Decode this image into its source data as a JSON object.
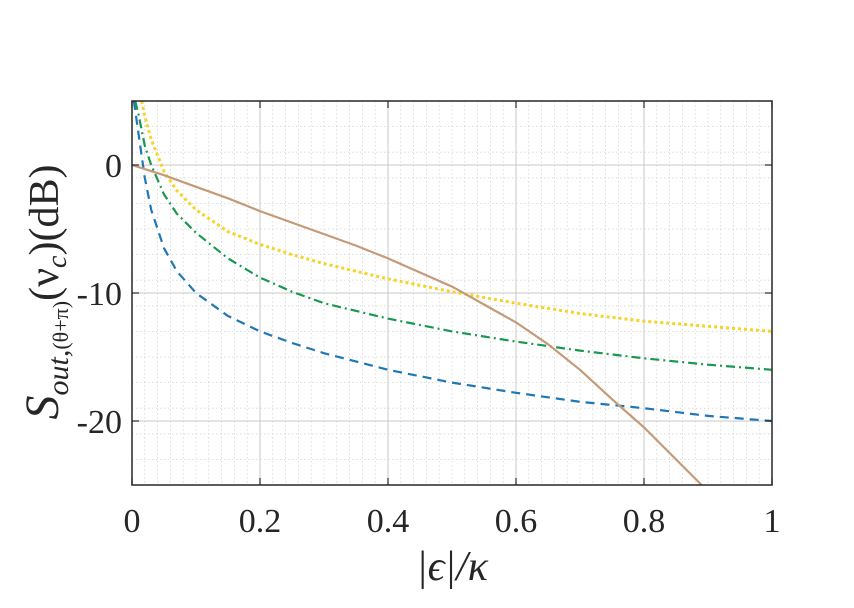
{
  "chart_data": {
    "type": "line",
    "title": "",
    "xlabel": "|ϵ|/κ",
    "ylabel": "S_out,(θ+π)(ν_c)(dB)",
    "ylabel_parts": {
      "main": "S",
      "sub": "out,",
      "sub_paren": "(θ+π)",
      "arg": "(ν",
      "arg_sub": "c",
      "arg_close": ")",
      "unit": "(dB)"
    },
    "xlim": [
      0,
      1
    ],
    "ylim": [
      -25,
      5
    ],
    "xticks": [
      0,
      0.2,
      0.4,
      0.6,
      0.8,
      1
    ],
    "xtick_labels": [
      "0",
      "0.2",
      "0.4",
      "0.6",
      "0.8",
      "1"
    ],
    "yticks": [
      -20,
      -10,
      0
    ],
    "ytick_labels": [
      "-20",
      "-10",
      "0"
    ],
    "grid": true,
    "minor_grid": true,
    "legend": "none",
    "series": [
      {
        "color": "#1f77b4",
        "line_style": "dashed",
        "x": [
          0.003,
          0.01,
          0.02,
          0.03,
          0.05,
          0.07,
          0.1,
          0.15,
          0.2,
          0.25,
          0.3,
          0.4,
          0.5,
          0.6,
          0.7,
          0.8,
          0.9,
          1.0
        ],
        "y": [
          5,
          2.5,
          -1,
          -3.5,
          -6.5,
          -8.3,
          -10,
          -11.8,
          -13,
          -13.9,
          -14.7,
          -16,
          -17,
          -17.8,
          -18.5,
          -19,
          -19.6,
          -20
        ]
      },
      {
        "color": "#1a9850",
        "line_style": "dashdot",
        "x": [
          0.005,
          0.01,
          0.02,
          0.03,
          0.05,
          0.07,
          0.1,
          0.15,
          0.2,
          0.25,
          0.3,
          0.4,
          0.5,
          0.6,
          0.7,
          0.8,
          0.9,
          1.0
        ],
        "y": [
          5,
          4,
          1.5,
          0,
          -2.3,
          -3.8,
          -5.3,
          -7.3,
          -8.8,
          -9.9,
          -10.8,
          -12,
          -13,
          -13.8,
          -14.5,
          -15.1,
          -15.6,
          -16
        ]
      },
      {
        "color": "#f5d327",
        "line_style": "dotted",
        "x": [
          0.015,
          0.02,
          0.03,
          0.05,
          0.07,
          0.1,
          0.15,
          0.2,
          0.25,
          0.3,
          0.4,
          0.5,
          0.6,
          0.7,
          0.8,
          0.9,
          1.0
        ],
        "y": [
          5,
          3.8,
          2,
          -0.5,
          -2,
          -3.5,
          -5.2,
          -6.2,
          -7,
          -7.7,
          -8.9,
          -9.9,
          -10.8,
          -11.6,
          -12.2,
          -12.6,
          -13
        ]
      },
      {
        "color": "#c49a78",
        "line_style": "solid",
        "x": [
          0,
          0.05,
          0.1,
          0.15,
          0.2,
          0.25,
          0.3,
          0.35,
          0.4,
          0.45,
          0.5,
          0.55,
          0.6,
          0.65,
          0.7,
          0.75,
          0.8,
          0.85,
          0.89
        ],
        "y": [
          0,
          -0.8,
          -1.7,
          -2.6,
          -3.6,
          -4.5,
          -5.4,
          -6.3,
          -7.3,
          -8.4,
          -9.5,
          -10.9,
          -12.3,
          -14,
          -16,
          -18.3,
          -20.5,
          -23,
          -25
        ]
      }
    ]
  }
}
